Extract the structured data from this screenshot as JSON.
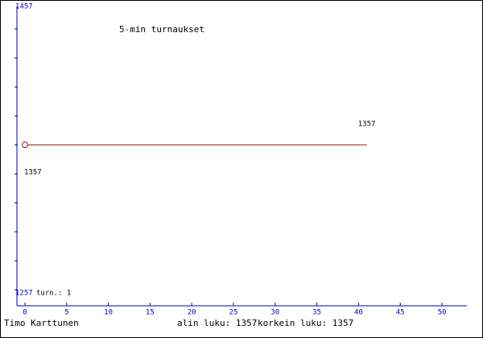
{
  "chart_data": {
    "type": "line",
    "title": "5-min turnaukset",
    "annotation": "turn.: 1",
    "author": "Timo Karttunen",
    "footer": [
      "alin luku: 1357",
      "korkein luku: 1357"
    ],
    "x": [
      0,
      41
    ],
    "series": [
      {
        "color": "#8b1a1a",
        "values": [
          1357,
          1357
        ]
      }
    ],
    "xlim": [
      0,
      53
    ],
    "xticks": [
      0,
      5,
      10,
      15,
      20,
      25,
      30,
      35,
      40,
      45,
      50
    ],
    "ylim": [
      1257,
      1457
    ],
    "yticks": [
      1257,
      1457
    ]
  }
}
